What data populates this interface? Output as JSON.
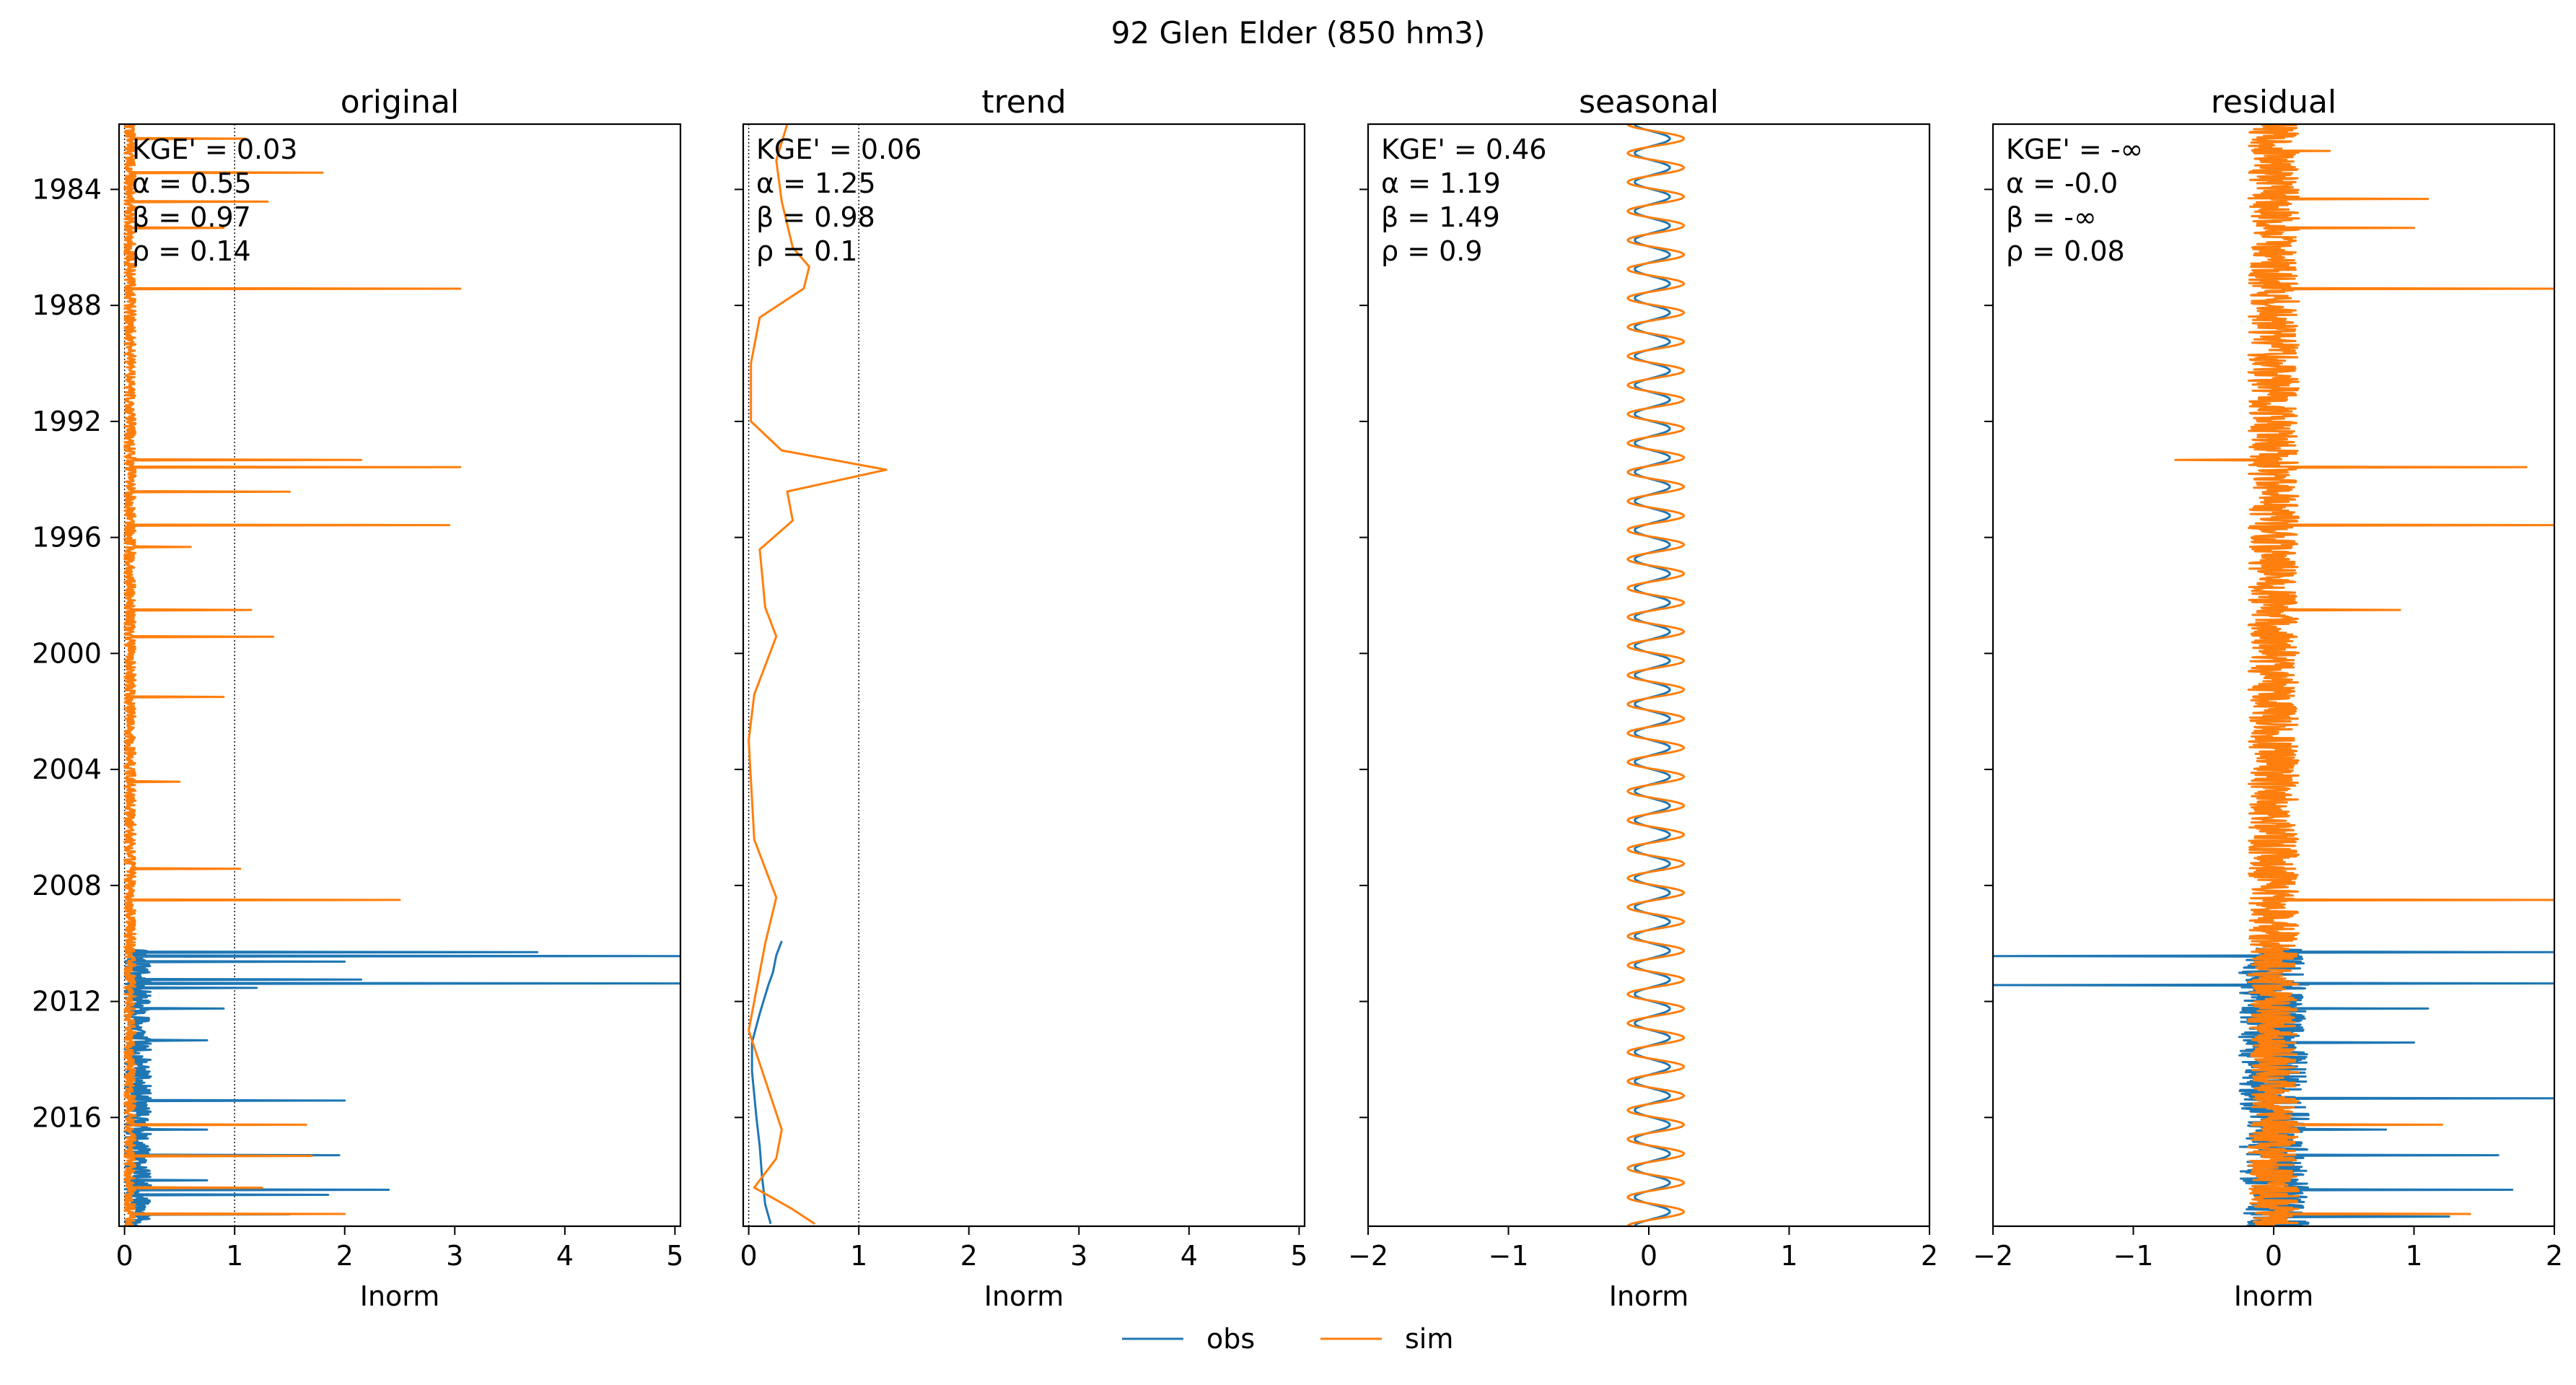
{
  "figure": {
    "suptitle": "92  Glen Elder (850 hm3)",
    "legend": [
      {
        "label": "obs",
        "color": "#1f77b4"
      },
      {
        "label": "sim",
        "color": "#ff7f0e"
      }
    ],
    "legend_placement": "bottom-center"
  },
  "chart_data": [
    {
      "type": "line",
      "title": "original",
      "xlabel": "Inorm",
      "xlim": [
        -0.05,
        5.05
      ],
      "xticks": [
        "0",
        "1",
        "2",
        "3",
        "4",
        "5"
      ],
      "y_axis": "date",
      "ylim": [
        "1981-10-01",
        "2019-10-01"
      ],
      "yticks": [
        "1984",
        "1988",
        "1992",
        "1996",
        "2000",
        "2004",
        "2008",
        "2012",
        "2016"
      ],
      "reference_lines_x": [
        0,
        1
      ],
      "metrics": [
        "KGE' = 0.03",
        "α = 0.55",
        "β = 0.97",
        "ρ = 0.14"
      ],
      "series": [
        {
          "name": "obs",
          "color": "#1f77b4",
          "start": "2010-03-01",
          "end": "2019-09-30",
          "base": 0.12,
          "noise": 0.12,
          "seed": 11,
          "spikes": [
            [
              "2010-04-20",
              3.75
            ],
            [
              "2010-06-10",
              5.05
            ],
            [
              "2010-08-15",
              2.0
            ],
            [
              "2011-04-01",
              2.15
            ],
            [
              "2011-05-20",
              5.05
            ],
            [
              "2011-07-10",
              1.2
            ],
            [
              "2012-04-01",
              0.9
            ],
            [
              "2013-05-01",
              0.75
            ],
            [
              "2015-06-01",
              2.0
            ],
            [
              "2016-06-01",
              0.75
            ],
            [
              "2017-04-20",
              1.95
            ],
            [
              "2018-03-01",
              0.75
            ],
            [
              "2018-07-01",
              2.4
            ],
            [
              "2018-09-01",
              1.85
            ],
            [
              "2019-05-01",
              1.5
            ]
          ]
        },
        {
          "name": "sim",
          "color": "#ff7f0e",
          "start": "1981-10-01",
          "end": "2019-09-30",
          "base": 0.05,
          "noise": 0.05,
          "seed": 22,
          "spikes": [
            [
              "1982-04-01",
              1.1
            ],
            [
              "1983-06-01",
              1.8
            ],
            [
              "1984-06-01",
              1.3
            ],
            [
              "1985-05-01",
              0.9
            ],
            [
              "1987-06-01",
              3.05
            ],
            [
              "1993-05-01",
              2.15
            ],
            [
              "1993-08-01",
              3.05
            ],
            [
              "1994-06-01",
              1.5
            ],
            [
              "1995-08-01",
              2.95
            ],
            [
              "1996-05-01",
              0.6
            ],
            [
              "1998-07-01",
              1.15
            ],
            [
              "1999-06-01",
              1.35
            ],
            [
              "2001-07-01",
              0.9
            ],
            [
              "2004-06-01",
              0.5
            ],
            [
              "2007-06-01",
              1.05
            ],
            [
              "2008-07-01",
              2.5
            ],
            [
              "2016-04-01",
              1.65
            ],
            [
              "2017-05-01",
              1.7
            ],
            [
              "2018-06-01",
              1.25
            ],
            [
              "2019-05-01",
              2.0
            ]
          ]
        }
      ]
    },
    {
      "type": "line",
      "title": "trend",
      "xlabel": "Inorm",
      "xlim": [
        -0.05,
        5.05
      ],
      "xticks": [
        "0",
        "1",
        "2",
        "3",
        "4",
        "5"
      ],
      "y_axis": "date",
      "ylim": [
        "1981-10-01",
        "2019-10-01"
      ],
      "reference_lines_x": [
        0,
        1
      ],
      "metrics": [
        "KGE' = 0.06",
        "α = 1.25",
        "β = 0.98",
        "ρ = 0.1"
      ],
      "series": [
        {
          "name": "obs",
          "color": "#1f77b4",
          "points": [
            [
              "2009-12-01",
              0.3
            ],
            [
              "2010-06-01",
              0.25
            ],
            [
              "2011-01-01",
              0.22
            ],
            [
              "2011-06-01",
              0.18
            ],
            [
              "2012-06-01",
              0.1
            ],
            [
              "2013-06-01",
              0.03
            ],
            [
              "2014-06-01",
              0.03
            ],
            [
              "2016-01-01",
              0.07
            ],
            [
              "2017-01-01",
              0.1
            ],
            [
              "2018-01-01",
              0.12
            ],
            [
              "2019-01-01",
              0.15
            ],
            [
              "2019-09-01",
              0.2
            ]
          ]
        },
        {
          "name": "sim",
          "color": "#ff7f0e",
          "points": [
            [
              "1981-10-01",
              0.35
            ],
            [
              "1983-01-01",
              0.25
            ],
            [
              "1984-06-01",
              0.3
            ],
            [
              "1986-01-01",
              0.4
            ],
            [
              "1986-09-01",
              0.55
            ],
            [
              "1987-06-01",
              0.5
            ],
            [
              "1988-06-01",
              0.1
            ],
            [
              "1990-01-01",
              0.02
            ],
            [
              "1992-01-01",
              0.02
            ],
            [
              "1993-01-01",
              0.3
            ],
            [
              "1993-09-01",
              1.25
            ],
            [
              "1994-06-01",
              0.35
            ],
            [
              "1995-06-01",
              0.4
            ],
            [
              "1996-06-01",
              0.1
            ],
            [
              "1998-06-01",
              0.15
            ],
            [
              "1999-06-01",
              0.25
            ],
            [
              "2001-06-01",
              0.05
            ],
            [
              "2003-01-01",
              0.0
            ],
            [
              "2006-06-01",
              0.05
            ],
            [
              "2008-06-01",
              0.25
            ],
            [
              "2010-01-01",
              0.15
            ],
            [
              "2013-01-01",
              0.0
            ],
            [
              "2016-06-01",
              0.3
            ],
            [
              "2017-06-01",
              0.25
            ],
            [
              "2018-06-01",
              0.05
            ],
            [
              "2019-03-01",
              0.4
            ],
            [
              "2019-09-01",
              0.6
            ]
          ]
        }
      ]
    },
    {
      "type": "line",
      "title": "seasonal",
      "xlabel": "Inorm",
      "xlim": [
        -2,
        2
      ],
      "xticks": [
        "−2",
        "−1",
        "0",
        "1",
        "2"
      ],
      "y_axis": "date",
      "ylim": [
        "1981-10-01",
        "2019-10-01"
      ],
      "metrics": [
        "KGE' = 0.46",
        "α = 1.19",
        "β = 1.49",
        "ρ = 0.9"
      ],
      "series": [
        {
          "name": "obs",
          "color": "#1f77b4",
          "start": "1981-10-01",
          "end": "2019-09-30",
          "min": -0.1,
          "max": 0.15
        },
        {
          "name": "sim",
          "color": "#ff7f0e",
          "start": "1981-10-01",
          "end": "2019-09-30",
          "min": -0.15,
          "max": 0.25
        }
      ]
    },
    {
      "type": "line",
      "title": "residual",
      "xlabel": "Inorm",
      "xlim": [
        -2,
        2
      ],
      "xticks": [
        "−2",
        "−1",
        "0",
        "1",
        "2"
      ],
      "y_axis": "date",
      "ylim": [
        "1981-10-01",
        "2019-10-01"
      ],
      "metrics": [
        "KGE' = -∞",
        "α = -0.0",
        "β = -∞",
        "ρ = 0.08"
      ],
      "series": [
        {
          "name": "obs",
          "color": "#1f77b4",
          "start": "2010-03-01",
          "end": "2019-09-30",
          "base": 0,
          "noise": 0.25,
          "seed": 33,
          "spikes": [
            [
              "2010-04-20",
              2.0
            ],
            [
              "2010-06-10",
              -2.0
            ],
            [
              "2011-05-20",
              2.0
            ],
            [
              "2011-06-10",
              -2.0
            ],
            [
              "2012-04-01",
              1.1
            ],
            [
              "2013-06-01",
              1.0
            ],
            [
              "2015-05-01",
              2.0
            ],
            [
              "2016-06-01",
              0.8
            ],
            [
              "2017-04-20",
              1.6
            ],
            [
              "2018-07-01",
              1.7
            ],
            [
              "2019-06-01",
              1.25
            ]
          ]
        },
        {
          "name": "sim",
          "color": "#ff7f0e",
          "start": "1981-10-01",
          "end": "2019-09-30",
          "base": 0,
          "noise": 0.18,
          "seed": 44,
          "spikes": [
            [
              "1982-09-01",
              0.4
            ],
            [
              "1984-05-01",
              1.1
            ],
            [
              "1985-05-01",
              1.0
            ],
            [
              "1987-06-01",
              2.0
            ],
            [
              "1993-05-01",
              -0.7
            ],
            [
              "1993-08-01",
              1.8
            ],
            [
              "1995-08-01",
              2.0
            ],
            [
              "1998-07-01",
              0.9
            ],
            [
              "2008-07-01",
              2.0
            ],
            [
              "2016-04-01",
              1.2
            ],
            [
              "2019-05-01",
              1.4
            ]
          ]
        }
      ]
    }
  ]
}
